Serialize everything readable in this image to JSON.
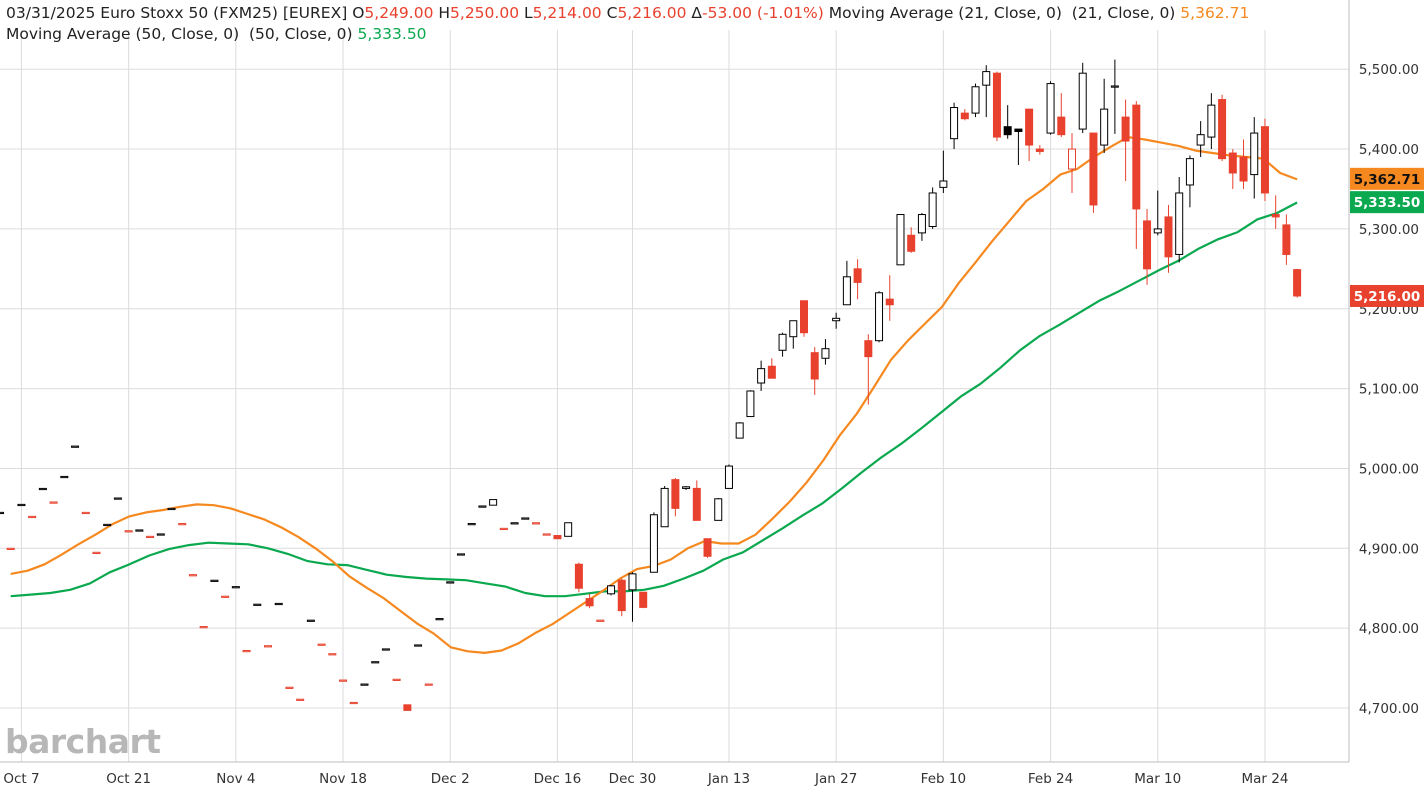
{
  "header": {
    "date": "03/31/2025",
    "symbol": "Euro Stoxx 50 (FXM25) [EUREX]",
    "open_label": "O",
    "open": "5,249.00",
    "high_label": "H",
    "high": "5,250.00",
    "low_label": "L",
    "low": "5,214.00",
    "close_label": "C",
    "close": "5,216.00",
    "change": "-53.00 (-1.01%)",
    "ma21_label": "Moving Average (21, Close, 0)  (21, Close, 0)",
    "ma21_value": "5,362.71",
    "ma50_label": "Moving Average (50, Close, 0)  (50, Close, 0)",
    "ma50_value": "5,333.50"
  },
  "logo": "barchart",
  "colors": {
    "up": "#000000",
    "down": "#e8412d",
    "ma21": "#f5891f",
    "ma50": "#0aa84f",
    "grid": "#dcdcdc"
  },
  "chart_data": {
    "type": "candlestick",
    "y_axis": {
      "min": 4660,
      "max": 5540,
      "ticks": [
        "4,700.00",
        "4,800.00",
        "4,900.00",
        "5,000.00",
        "5,100.00",
        "5,200.00",
        "5,300.00",
        "5,400.00",
        "5,500.00"
      ],
      "position": "right"
    },
    "x_axis": {
      "labels": [
        "Oct 7",
        "Oct 21",
        "Nov 4",
        "Nov 18",
        "Dec 2",
        "Dec 16",
        "Dec 30",
        "Jan 13",
        "Jan 27",
        "Feb 10",
        "Feb 24",
        "Mar 10",
        "Mar 24"
      ]
    },
    "price_tags": [
      {
        "series": "ma21",
        "value": "5,362.71"
      },
      {
        "series": "ma50",
        "value": "5,333.50"
      },
      {
        "series": "last",
        "value": "5,216.00"
      }
    ],
    "candles": [
      {
        "d": "Oct 3",
        "o": 4945,
        "h": 4945,
        "l": 4945,
        "c": 4945
      },
      {
        "d": "Oct 4",
        "o": 4900,
        "h": 4900,
        "l": 4900,
        "c": 4900
      },
      {
        "d": "Oct 7",
        "o": 4955,
        "h": 4955,
        "l": 4955,
        "c": 4955
      },
      {
        "d": "Oct 8",
        "o": 4940,
        "h": 4940,
        "l": 4940,
        "c": 4940
      },
      {
        "d": "Oct 9",
        "o": 4975,
        "h": 4975,
        "l": 4975,
        "c": 4975
      },
      {
        "d": "Oct 10",
        "o": 4958,
        "h": 4958,
        "l": 4958,
        "c": 4958
      },
      {
        "d": "Oct 11",
        "o": 4990,
        "h": 4990,
        "l": 4990,
        "c": 4990
      },
      {
        "d": "Oct 14",
        "o": 5028,
        "h": 5028,
        "l": 5028,
        "c": 5028
      },
      {
        "d": "Oct 15",
        "o": 4945,
        "h": 4945,
        "l": 4945,
        "c": 4945
      },
      {
        "d": "Oct 16",
        "o": 4895,
        "h": 4895,
        "l": 4895,
        "c": 4895
      },
      {
        "d": "Oct 17",
        "o": 4930,
        "h": 4930,
        "l": 4930,
        "c": 4930
      },
      {
        "d": "Oct 18",
        "o": 4963,
        "h": 4963,
        "l": 4963,
        "c": 4963
      },
      {
        "d": "Oct 21",
        "o": 4922,
        "h": 4922,
        "l": 4922,
        "c": 4922
      },
      {
        "d": "Oct 22",
        "o": 4923,
        "h": 4923,
        "l": 4923,
        "c": 4923
      },
      {
        "d": "Oct 23",
        "o": 4915,
        "h": 4915,
        "l": 4915,
        "c": 4915
      },
      {
        "d": "Oct 24",
        "o": 4918,
        "h": 4918,
        "l": 4918,
        "c": 4918
      },
      {
        "d": "Oct 25",
        "o": 4950,
        "h": 4950,
        "l": 4950,
        "c": 4950
      },
      {
        "d": "Oct 28",
        "o": 4931,
        "h": 4931,
        "l": 4931,
        "c": 4931
      },
      {
        "d": "Oct 29",
        "o": 4867,
        "h": 4867,
        "l": 4867,
        "c": 4867
      },
      {
        "d": "Oct 30",
        "o": 4802,
        "h": 4802,
        "l": 4802,
        "c": 4802
      },
      {
        "d": "Oct 31",
        "o": 4860,
        "h": 4860,
        "l": 4860,
        "c": 4860
      },
      {
        "d": "Nov 1",
        "o": 4840,
        "h": 4840,
        "l": 4840,
        "c": 4840
      },
      {
        "d": "Nov 4",
        "o": 4852,
        "h": 4852,
        "l": 4852,
        "c": 4852
      },
      {
        "d": "Nov 5",
        "o": 4772,
        "h": 4772,
        "l": 4772,
        "c": 4772
      },
      {
        "d": "Nov 6",
        "o": 4830,
        "h": 4830,
        "l": 4830,
        "c": 4830
      },
      {
        "d": "Nov 7",
        "o": 4778,
        "h": 4778,
        "l": 4778,
        "c": 4778
      },
      {
        "d": "Nov 8",
        "o": 4831,
        "h": 4831,
        "l": 4831,
        "c": 4831
      },
      {
        "d": "Nov 11",
        "o": 4726,
        "h": 4726,
        "l": 4726,
        "c": 4726
      },
      {
        "d": "Nov 12",
        "o": 4711,
        "h": 4711,
        "l": 4711,
        "c": 4711
      },
      {
        "d": "Nov 13",
        "o": 4810,
        "h": 4810,
        "l": 4810,
        "c": 4810
      },
      {
        "d": "Nov 14",
        "o": 4780,
        "h": 4780,
        "l": 4780,
        "c": 4780
      },
      {
        "d": "Nov 15",
        "o": 4768,
        "h": 4768,
        "l": 4768,
        "c": 4768
      },
      {
        "d": "Nov 18",
        "o": 4735,
        "h": 4735,
        "l": 4735,
        "c": 4735
      },
      {
        "d": "Nov 19",
        "o": 4707,
        "h": 4707,
        "l": 4707,
        "c": 4707
      },
      {
        "d": "Nov 20",
        "o": 4730,
        "h": 4730,
        "l": 4730,
        "c": 4730
      },
      {
        "d": "Nov 21",
        "o": 4758,
        "h": 4758,
        "l": 4758,
        "c": 4758
      },
      {
        "d": "Nov 22",
        "o": 4774,
        "h": 4774,
        "l": 4774,
        "c": 4774
      },
      {
        "d": "Nov 25",
        "o": 4736,
        "h": 4736,
        "l": 4736,
        "c": 4736
      },
      {
        "d": "Nov 26",
        "o": 4704,
        "h": 4704,
        "l": 4697,
        "c": 4697
      },
      {
        "d": "Nov 27",
        "o": 4779,
        "h": 4779,
        "l": 4779,
        "c": 4779
      },
      {
        "d": "Nov 28",
        "o": 4730,
        "h": 4730,
        "l": 4730,
        "c": 4730
      },
      {
        "d": "Nov 29",
        "o": 4812,
        "h": 4812,
        "l": 4812,
        "c": 4812
      },
      {
        "d": "Dec 2",
        "o": 4858,
        "h": 4858,
        "l": 4858,
        "c": 4858
      },
      {
        "d": "Dec 3",
        "o": 4893,
        "h": 4893,
        "l": 4893,
        "c": 4893
      },
      {
        "d": "Dec 4",
        "o": 4931,
        "h": 4931,
        "l": 4931,
        "c": 4931
      },
      {
        "d": "Dec 5",
        "o": 4953,
        "h": 4953,
        "l": 4953,
        "c": 4953
      },
      {
        "d": "Dec 6",
        "o": 4954,
        "h": 4961,
        "l": 4954,
        "c": 4961
      },
      {
        "d": "Dec 9",
        "o": 4925,
        "h": 4925,
        "l": 4925,
        "c": 4925
      },
      {
        "d": "Dec 10",
        "o": 4932,
        "h": 4932,
        "l": 4932,
        "c": 4932
      },
      {
        "d": "Dec 11",
        "o": 4938,
        "h": 4938,
        "l": 4938,
        "c": 4938
      },
      {
        "d": "Dec 12",
        "o": 4932,
        "h": 4932,
        "l": 4932,
        "c": 4932
      },
      {
        "d": "Dec 13",
        "o": 4918,
        "h": 4918,
        "l": 4918,
        "c": 4918
      },
      {
        "d": "Dec 16",
        "o": 4916,
        "h": 4916,
        "l": 4912,
        "c": 4912
      },
      {
        "d": "Dec 17",
        "o": 4915,
        "h": 4932,
        "l": 4915,
        "c": 4932
      },
      {
        "d": "Dec 18",
        "o": 4880,
        "h": 4882,
        "l": 4845,
        "c": 4850
      },
      {
        "d": "Dec 19",
        "o": 4837,
        "h": 4843,
        "l": 4825,
        "c": 4828
      },
      {
        "d": "Dec 20",
        "o": 4810,
        "h": 4810,
        "l": 4810,
        "c": 4810
      },
      {
        "d": "Dec 23",
        "o": 4843,
        "h": 4854,
        "l": 4841,
        "c": 4853
      },
      {
        "d": "Dec 27",
        "o": 4860,
        "h": 4862,
        "l": 4815,
        "c": 4822
      },
      {
        "d": "Dec 30",
        "o": 4848,
        "h": 4870,
        "l": 4808,
        "c": 4868
      },
      {
        "d": "Dec 31",
        "o": 4845,
        "h": 4845,
        "l": 4825,
        "c": 4826
      },
      {
        "d": "Jan 2",
        "o": 4870,
        "h": 4945,
        "l": 4870,
        "c": 4942
      },
      {
        "d": "Jan 3",
        "o": 4927,
        "h": 4978,
        "l": 4927,
        "c": 4975
      },
      {
        "d": "Jan 6",
        "o": 4986,
        "h": 4988,
        "l": 4940,
        "c": 4950
      },
      {
        "d": "Jan 7",
        "o": 4975,
        "h": 4978,
        "l": 4973,
        "c": 4977
      },
      {
        "d": "Jan 8",
        "o": 4975,
        "h": 4985,
        "l": 4935,
        "c": 4935
      },
      {
        "d": "Jan 9",
        "o": 4912,
        "h": 4912,
        "l": 4888,
        "c": 4890
      },
      {
        "d": "Jan 10",
        "o": 4935,
        "h": 4963,
        "l": 4935,
        "c": 4962
      },
      {
        "d": "Jan 13",
        "o": 4975,
        "h": 5005,
        "l": 4975,
        "c": 5003
      },
      {
        "d": "Jan 14",
        "o": 5038,
        "h": 5058,
        "l": 5038,
        "c": 5057
      },
      {
        "d": "Jan 15",
        "o": 5065,
        "h": 5098,
        "l": 5065,
        "c": 5097
      },
      {
        "d": "Jan 16",
        "o": 5107,
        "h": 5135,
        "l": 5097,
        "c": 5125
      },
      {
        "d": "Jan 17",
        "o": 5128,
        "h": 5138,
        "l": 5113,
        "c": 5113
      },
      {
        "d": "Jan 20",
        "o": 5148,
        "h": 5170,
        "l": 5140,
        "c": 5168
      },
      {
        "d": "Jan 21",
        "o": 5165,
        "h": 5185,
        "l": 5150,
        "c": 5185
      },
      {
        "d": "Jan 22",
        "o": 5210,
        "h": 5210,
        "l": 5165,
        "c": 5170
      },
      {
        "d": "Jan 23",
        "o": 5145,
        "h": 5152,
        "l": 5092,
        "c": 5112
      },
      {
        "d": "Jan 24",
        "o": 5138,
        "h": 5162,
        "l": 5130,
        "c": 5150
      },
      {
        "d": "Jan 27",
        "o": 5185,
        "h": 5195,
        "l": 5175,
        "c": 5188
      },
      {
        "d": "Jan 28",
        "o": 5205,
        "h": 5260,
        "l": 5205,
        "c": 5240
      },
      {
        "d": "Jan 29",
        "o": 5250,
        "h": 5262,
        "l": 5212,
        "c": 5233
      },
      {
        "d": "Jan 30",
        "o": 5160,
        "h": 5168,
        "l": 5080,
        "c": 5140
      },
      {
        "d": "Jan 31",
        "o": 5160,
        "h": 5222,
        "l": 5158,
        "c": 5220
      },
      {
        "d": "Feb 3",
        "o": 5212,
        "h": 5242,
        "l": 5185,
        "c": 5205
      },
      {
        "d": "Feb 4",
        "o": 5255,
        "h": 5318,
        "l": 5255,
        "c": 5318
      },
      {
        "d": "Feb 5",
        "o": 5292,
        "h": 5302,
        "l": 5270,
        "c": 5272
      },
      {
        "d": "Feb 6",
        "o": 5295,
        "h": 5320,
        "l": 5285,
        "c": 5318
      },
      {
        "d": "Feb 7",
        "o": 5303,
        "h": 5352,
        "l": 5300,
        "c": 5345
      },
      {
        "d": "Feb 10",
        "o": 5352,
        "h": 5398,
        "l": 5345,
        "c": 5360
      },
      {
        "d": "Feb 11",
        "o": 5413,
        "h": 5458,
        "l": 5400,
        "c": 5452
      },
      {
        "d": "Feb 12",
        "o": 5445,
        "h": 5450,
        "l": 5436,
        "c": 5438
      },
      {
        "d": "Feb 13",
        "o": 5445,
        "h": 5482,
        "l": 5440,
        "c": 5478
      },
      {
        "d": "Feb 14",
        "o": 5480,
        "h": 5505,
        "l": 5440,
        "c": 5497
      },
      {
        "d": "Feb 17",
        "o": 5495,
        "h": 5497,
        "l": 5410,
        "c": 5415
      },
      {
        "d": "Feb 18",
        "o": 5428,
        "h": 5455,
        "l": 5413,
        "c": 5418
      },
      {
        "d": "Feb 19",
        "o": 5425,
        "h": 5425,
        "l": 5380,
        "c": 5422
      },
      {
        "d": "Feb 20",
        "o": 5450,
        "h": 5450,
        "l": 5385,
        "c": 5405
      },
      {
        "d": "Feb 21",
        "o": 5400,
        "h": 5405,
        "l": 5393,
        "c": 5397
      },
      {
        "d": "Feb 24",
        "o": 5420,
        "h": 5485,
        "l": 5418,
        "c": 5482
      },
      {
        "d": "Feb 25",
        "o": 5440,
        "h": 5470,
        "l": 5415,
        "c": 5418
      },
      {
        "d": "Feb 26",
        "o": 5375,
        "h": 5420,
        "l": 5345,
        "c": 5400
      },
      {
        "d": "Feb 27",
        "o": 5425,
        "h": 5508,
        "l": 5420,
        "c": 5495
      },
      {
        "d": "Feb 28",
        "o": 5420,
        "h": 5420,
        "l": 5320,
        "c": 5330
      },
      {
        "d": "Mar 3",
        "o": 5405,
        "h": 5488,
        "l": 5395,
        "c": 5450
      },
      {
        "d": "Mar 4",
        "o": 5479,
        "h": 5512,
        "l": 5419,
        "c": 5479
      },
      {
        "d": "Mar 5",
        "o": 5440,
        "h": 5462,
        "l": 5360,
        "c": 5410
      },
      {
        "d": "Mar 6",
        "o": 5455,
        "h": 5460,
        "l": 5275,
        "c": 5325
      },
      {
        "d": "Mar 7",
        "o": 5310,
        "h": 5325,
        "l": 5230,
        "c": 5250
      },
      {
        "d": "Mar 10",
        "o": 5295,
        "h": 5348,
        "l": 5292,
        "c": 5300
      },
      {
        "d": "Mar 11",
        "o": 5315,
        "h": 5330,
        "l": 5245,
        "c": 5265
      },
      {
        "d": "Mar 12",
        "o": 5268,
        "h": 5365,
        "l": 5258,
        "c": 5345
      },
      {
        "d": "Mar 13",
        "o": 5355,
        "h": 5392,
        "l": 5327,
        "c": 5388
      },
      {
        "d": "Mar 14",
        "o": 5405,
        "h": 5435,
        "l": 5390,
        "c": 5418
      },
      {
        "d": "Mar 17",
        "o": 5415,
        "h": 5470,
        "l": 5400,
        "c": 5455
      },
      {
        "d": "Mar 18",
        "o": 5462,
        "h": 5468,
        "l": 5385,
        "c": 5388
      },
      {
        "d": "Mar 19",
        "o": 5395,
        "h": 5400,
        "l": 5350,
        "c": 5370
      },
      {
        "d": "Mar 20",
        "o": 5390,
        "h": 5412,
        "l": 5350,
        "c": 5360
      },
      {
        "d": "Mar 21",
        "o": 5368,
        "h": 5440,
        "l": 5338,
        "c": 5420
      },
      {
        "d": "Mar 24",
        "o": 5428,
        "h": 5438,
        "l": 5335,
        "c": 5345
      },
      {
        "d": "Mar 25",
        "o": 5318,
        "h": 5342,
        "l": 5300,
        "c": 5315
      },
      {
        "d": "Mar 26",
        "o": 5305,
        "h": 5318,
        "l": 5255,
        "c": 5268
      },
      {
        "d": "Mar 28",
        "o": 5249,
        "h": 5250,
        "l": 5214,
        "c": 5216
      }
    ],
    "ma21": [
      4868,
      4872,
      4880,
      4892,
      4905,
      4917,
      4930,
      4940,
      4945,
      4948,
      4952,
      4955,
      4954,
      4950,
      4943,
      4936,
      4926,
      4914,
      4900,
      4884,
      4865,
      4851,
      4838,
      4822,
      4806,
      4793,
      4776,
      4771,
      4769,
      4772,
      4781,
      4794,
      4805,
      4819,
      4833,
      4847,
      4862,
      4874,
      4878,
      4886,
      4900,
      4909,
      4906,
      4906,
      4917,
      4937,
      4958,
      4982,
      5010,
      5042,
      5069,
      5102,
      5136,
      5160,
      5181,
      5202,
      5232,
      5258,
      5285,
      5310,
      5335,
      5350,
      5368,
      5375,
      5390,
      5403,
      5415,
      5412,
      5408,
      5404,
      5398,
      5395,
      5392,
      5390,
      5388,
      5370,
      5362
    ],
    "ma50": [
      4840,
      4842,
      4844,
      4848,
      4856,
      4870,
      4880,
      4891,
      4899,
      4904,
      4907,
      4906,
      4905,
      4900,
      4893,
      4884,
      4880,
      4879,
      4873,
      4867,
      4864,
      4862,
      4861,
      4860,
      4856,
      4852,
      4844,
      4840,
      4840,
      4843,
      4846,
      4846,
      4848,
      4853,
      4862,
      4872,
      4886,
      4895,
      4910,
      4925,
      4941,
      4956,
      4975,
      4995,
      5014,
      5031,
      5050,
      5070,
      5090,
      5106,
      5126,
      5148,
      5166,
      5180,
      5195,
      5210,
      5222,
      5235,
      5248,
      5260,
      5275,
      5287,
      5296,
      5312,
      5320,
      5333
    ],
    "ma21_start_date": "Oct 4",
    "ma50_start_date": "Oct 4"
  }
}
